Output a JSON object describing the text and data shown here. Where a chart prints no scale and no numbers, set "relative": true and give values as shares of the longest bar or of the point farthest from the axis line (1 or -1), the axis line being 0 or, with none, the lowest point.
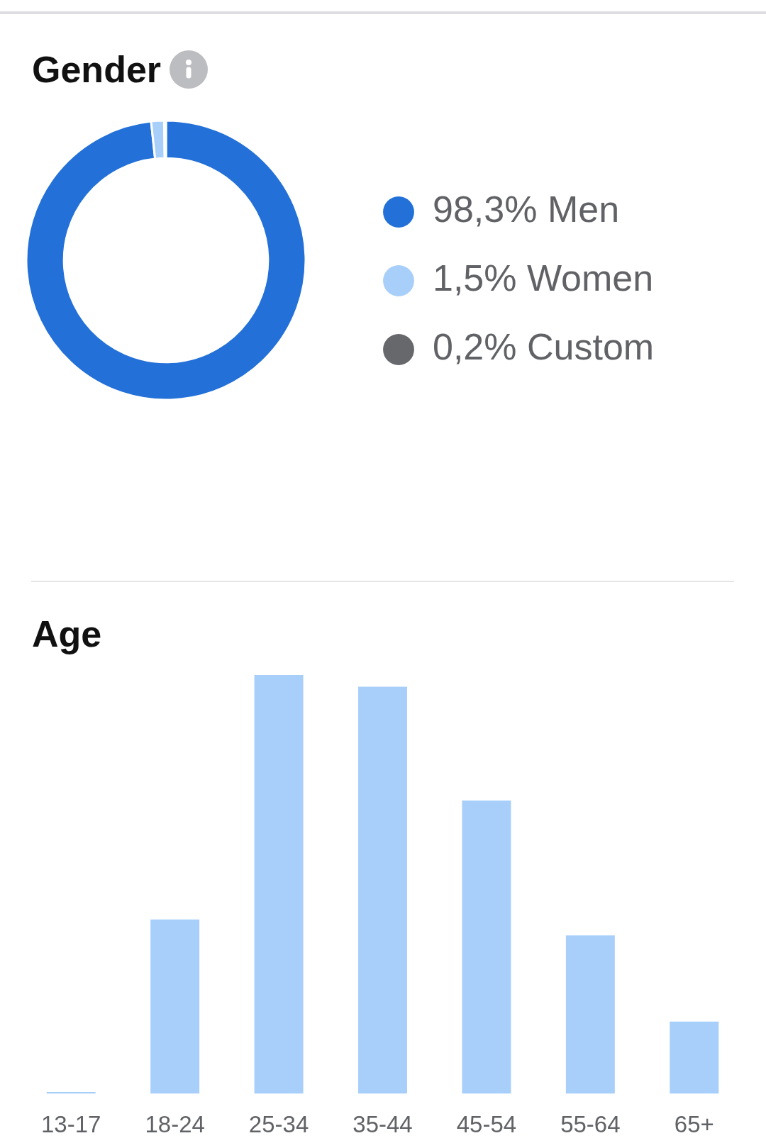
{
  "chart_data": [
    {
      "type": "donut",
      "title": "Gender",
      "categories": [
        "Men",
        "Women",
        "Custom"
      ],
      "values": [
        98.3,
        1.5,
        0.2
      ],
      "value_labels": [
        "98,3%",
        "1,5%",
        "0,2%"
      ],
      "colors": [
        "#2270d8",
        "#a8cefa",
        "#67686c"
      ],
      "legend": "right"
    },
    {
      "type": "bar",
      "title": "Age",
      "categories": [
        "13-17",
        "18-24",
        "25-34",
        "35-44",
        "45-54",
        "55-64",
        "65+"
      ],
      "values": [
        0.004,
        0.416,
        1,
        0.972,
        0.7,
        0.378,
        0.172
      ],
      "color": "#a8cffa",
      "relative": true
    }
  ]
}
